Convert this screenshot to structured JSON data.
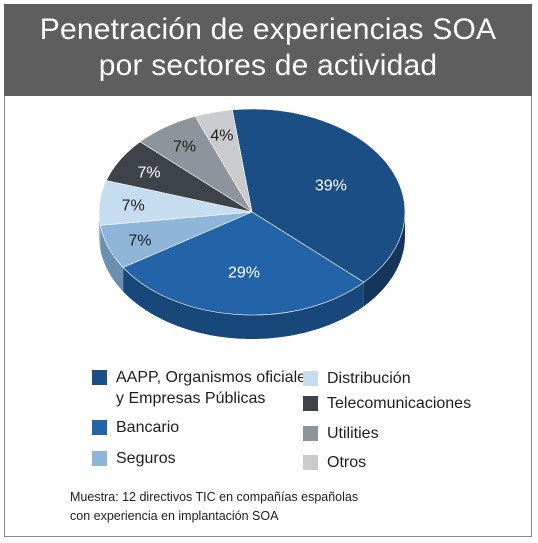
{
  "chart_data": {
    "type": "pie",
    "title_lines": [
      "Penetración de experiencias SOA",
      "por sectores de actividad"
    ],
    "slices": [
      {
        "label": "AAPP, Organismos oficiales\ny Empresas Públicas",
        "value": 39,
        "display": "39%",
        "color": "#1b4e85",
        "side": "#15365a"
      },
      {
        "label": "Bancario",
        "value": 29,
        "display": "29%",
        "color": "#2363a8",
        "side": "#18477a"
      },
      {
        "label": "Seguros",
        "value": 7,
        "display": "7%",
        "color": "#8fb5d9",
        "side": "#6b8fb0"
      },
      {
        "label": "Distribución",
        "value": 7,
        "display": "7%",
        "color": "#c6dcef",
        "side": "#9bb4ca"
      },
      {
        "label": "Telecomunicaciones",
        "value": 7,
        "display": "7%",
        "color": "#3e4349",
        "side": "#2a2e32"
      },
      {
        "label": "Utilities",
        "value": 7,
        "display": "7%",
        "color": "#8e949c",
        "side": "#6b7077"
      },
      {
        "label": "Otros",
        "value": 4,
        "display": "4%",
        "color": "#c9cbce",
        "side": "#a3a5a8"
      }
    ],
    "legend_placement": "bottom",
    "footnote": "Muestra: 12 directivos TIC en compañías  españolas\ncon experiencia en implantación SOA"
  }
}
